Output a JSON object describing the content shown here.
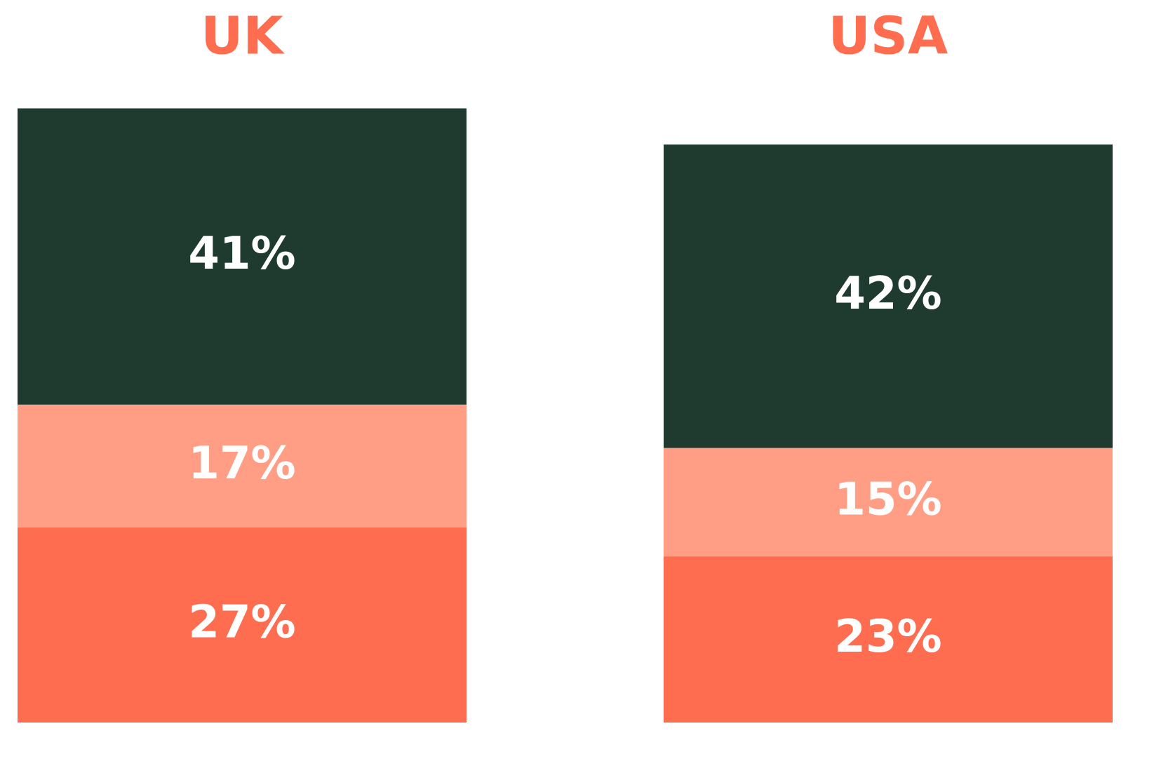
{
  "chart_data": {
    "type": "stacked_bar",
    "categories": [
      "UK",
      "USA"
    ],
    "series": [
      {
        "color": "#ff6d50",
        "values": [
          27,
          23
        ],
        "value_labels": [
          "27%",
          "23%"
        ]
      },
      {
        "color": "#ff9e85",
        "values": [
          17,
          15
        ],
        "value_labels": [
          "17%",
          "15%"
        ]
      },
      {
        "color": "#1f3a2f",
        "values": [
          41,
          42
        ],
        "value_labels": [
          "41%",
          "42%"
        ]
      }
    ]
  }
}
